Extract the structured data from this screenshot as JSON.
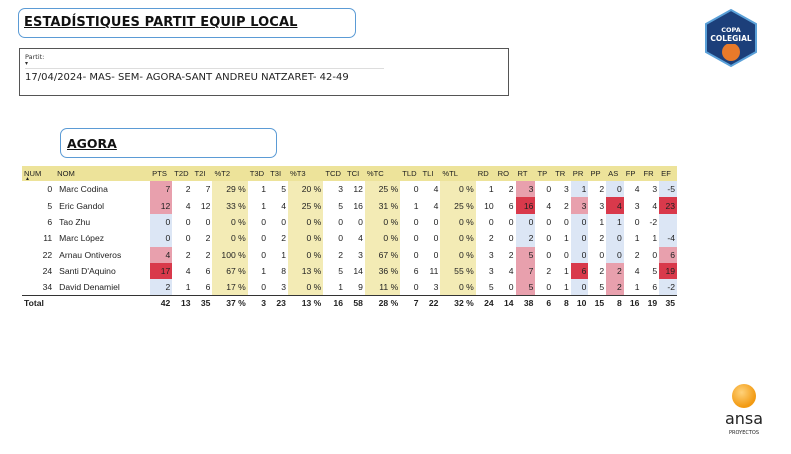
{
  "report": {
    "title": "ESTADÍSTIQUES PARTIT EQUIP LOCAL",
    "filter_label": "Partit:",
    "filter_value": "17/04/2024- MAS- SEM- AGORA-SANT ANDREU NATZARET- 42-49",
    "team_name": "AGORA"
  },
  "logos": {
    "copa_line1": "COPA",
    "copa_line2": "COLEGIAL",
    "ansa_name": "ansa",
    "ansa_sub": "PROYECTOS"
  },
  "table": {
    "columns": [
      "NUM",
      "NOM",
      "PTS",
      "T2D",
      "T2I",
      "%T2",
      "T3D",
      "T3I",
      "%T3",
      "TCD",
      "TCI",
      "%TC",
      "TLD",
      "TLI",
      "%TL",
      "RD",
      "RO",
      "RT",
      "TP",
      "TR",
      "PR",
      "PP",
      "AS",
      "FP",
      "FR",
      "EF"
    ],
    "rows": [
      {
        "cells": [
          "0",
          "Marc Codina",
          "7",
          "2",
          "7",
          "29 %",
          "1",
          "5",
          "20 %",
          "3",
          "12",
          "25 %",
          "0",
          "4",
          "0 %",
          "1",
          "2",
          "3",
          "0",
          "3",
          "1",
          "2",
          "0",
          "4",
          "3",
          "-5"
        ]
      },
      {
        "cells": [
          "5",
          "Eric Gandol",
          "12",
          "4",
          "12",
          "33 %",
          "1",
          "4",
          "25 %",
          "5",
          "16",
          "31 %",
          "1",
          "4",
          "25 %",
          "10",
          "6",
          "16",
          "4",
          "2",
          "3",
          "3",
          "4",
          "3",
          "4",
          "23"
        ]
      },
      {
        "cells": [
          "6",
          "Tao Zhu",
          "0",
          "0",
          "0",
          "0 %",
          "0",
          "0",
          "0 %",
          "0",
          "0",
          "0 %",
          "0",
          "0",
          "0 %",
          "0",
          "0",
          "0",
          "0",
          "0",
          "0",
          "1",
          "1",
          "0",
          "-2",
          ""
        ]
      },
      {
        "cells": [
          "11",
          "Marc López",
          "0",
          "0",
          "2",
          "0 %",
          "0",
          "2",
          "0 %",
          "0",
          "4",
          "0 %",
          "0",
          "0",
          "0 %",
          "2",
          "0",
          "2",
          "0",
          "1",
          "0",
          "2",
          "0",
          "1",
          "1",
          "-4"
        ]
      },
      {
        "cells": [
          "22",
          "Arnau Ontiveros",
          "4",
          "2",
          "2",
          "100 %",
          "0",
          "1",
          "0 %",
          "2",
          "3",
          "67 %",
          "0",
          "0",
          "0 %",
          "3",
          "2",
          "5",
          "0",
          "0",
          "0",
          "0",
          "0",
          "2",
          "0",
          "6"
        ]
      },
      {
        "cells": [
          "24",
          "Santi D'Aquino",
          "17",
          "4",
          "6",
          "67 %",
          "1",
          "8",
          "13 %",
          "5",
          "14",
          "36 %",
          "6",
          "11",
          "55 %",
          "3",
          "4",
          "7",
          "2",
          "1",
          "6",
          "2",
          "2",
          "4",
          "5",
          "19"
        ]
      },
      {
        "cells": [
          "34",
          "David Denamiel",
          "2",
          "1",
          "6",
          "17 %",
          "0",
          "3",
          "0 %",
          "1",
          "9",
          "11 %",
          "0",
          "3",
          "0 %",
          "5",
          "0",
          "5",
          "0",
          "1",
          "0",
          "5",
          "2",
          "1",
          "6",
          "-2"
        ]
      }
    ],
    "total": {
      "cells": [
        "Total",
        "",
        "42",
        "13",
        "35",
        "37 %",
        "3",
        "23",
        "13 %",
        "16",
        "58",
        "28 %",
        "7",
        "22",
        "32 %",
        "24",
        "14",
        "38",
        "6",
        "8",
        "10",
        "15",
        "8",
        "16",
        "19",
        "35"
      ]
    }
  },
  "colors": {
    "header_bg": "#ede39a",
    "pct_bg": "#f3ebb5",
    "box_border": "#5b9bd5",
    "hot": "#d9394b",
    "warm": "#e8a0ad",
    "cool": "#dce6f5"
  }
}
